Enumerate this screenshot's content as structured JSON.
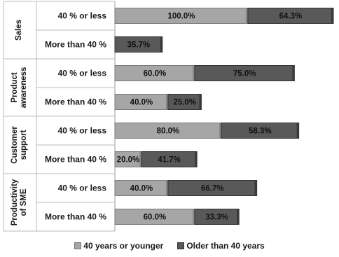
{
  "chart_data": {
    "type": "bar",
    "orientation": "horizontal",
    "stacked": true,
    "groups": [
      {
        "label": "Sales",
        "rows": [
          "40 % or less",
          "More than 40 %"
        ]
      },
      {
        "label": "Product awareness",
        "rows": [
          "40 % or less",
          "More than 40 %"
        ]
      },
      {
        "label": "Customer support",
        "rows": [
          "40 % or less",
          "More than 40 %"
        ]
      },
      {
        "label": "Productivity of SME",
        "rows": [
          "40 % or less",
          "More than 40 %"
        ]
      }
    ],
    "categories": [
      "Sales | 40 % or less",
      "Sales | More than 40 %",
      "Product awareness | 40 % or less",
      "Product awareness | More than 40 %",
      "Customer support | 40 % or less",
      "Customer support | More than 40 %",
      "Productivity of SME | 40 % or less",
      "Productivity of SME | More than 40 %"
    ],
    "series": [
      {
        "name": "40 years or younger",
        "color": "#a6a6a6",
        "values": [
          100.0,
          0,
          60.0,
          40.0,
          80.0,
          20.0,
          40.0,
          60.0
        ],
        "labels": [
          "100.0%",
          "",
          "60.0%",
          "40.0%",
          "80.0%",
          "20.0%",
          "40.0%",
          "60.0%"
        ]
      },
      {
        "name": "Older than 40 years",
        "color": "#595959",
        "values": [
          64.3,
          35.7,
          75.0,
          25.0,
          58.3,
          41.7,
          66.7,
          33.3
        ],
        "labels": [
          "64.3%",
          "35.7%",
          "75.0%",
          "25.0%",
          "58.3%",
          "41.7%",
          "66.7%",
          "33.3%"
        ]
      }
    ],
    "xlim": [
      0,
      164.3
    ],
    "grid": false,
    "legend_position": "bottom"
  }
}
